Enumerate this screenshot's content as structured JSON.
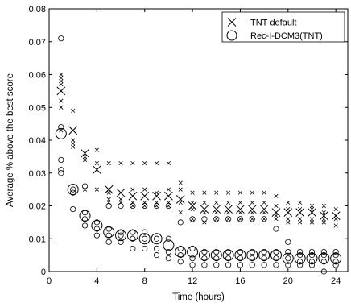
{
  "chart_data": {
    "type": "scatter",
    "title": "",
    "xlabel": "Time (hours)",
    "ylabel": "Average % above the best score",
    "xlim": [
      0,
      25
    ],
    "ylim": [
      0,
      0.08
    ],
    "xticks": [
      0,
      4,
      8,
      12,
      16,
      20,
      24
    ],
    "yticks": [
      0,
      0.01,
      0.02,
      0.03,
      0.04,
      0.05,
      0.06,
      0.07,
      0.08
    ],
    "ytick_labels": [
      "0",
      "0.01",
      "0.02",
      "0.03",
      "0.04",
      "0.05",
      "0.06",
      "0.07",
      "0.08"
    ],
    "grid": false,
    "legend_position": "top-right",
    "series": [
      {
        "name": "TNT-default",
        "marker": "x",
        "mean": [
          [
            1,
            0.055
          ],
          [
            2,
            0.043
          ],
          [
            3,
            0.036
          ],
          [
            4,
            0.031
          ],
          [
            5,
            0.025
          ],
          [
            6,
            0.024
          ],
          [
            7,
            0.023
          ],
          [
            8,
            0.023
          ],
          [
            9,
            0.023
          ],
          [
            10,
            0.023
          ],
          [
            11,
            0.022
          ],
          [
            12,
            0.02
          ],
          [
            13,
            0.019
          ],
          [
            14,
            0.019
          ],
          [
            15,
            0.019
          ],
          [
            16,
            0.019
          ],
          [
            17,
            0.019
          ],
          [
            18,
            0.019
          ],
          [
            19,
            0.018
          ],
          [
            20,
            0.018
          ],
          [
            21,
            0.018
          ],
          [
            22,
            0.018
          ],
          [
            23,
            0.017
          ],
          [
            24,
            0.017
          ]
        ],
        "runs": [
          [
            1,
            0.06
          ],
          [
            1,
            0.059
          ],
          [
            1,
            0.058
          ],
          [
            1,
            0.057
          ],
          [
            1,
            0.052
          ],
          [
            1,
            0.05
          ],
          [
            1,
            0.043
          ],
          [
            2,
            0.049
          ],
          [
            2,
            0.043
          ],
          [
            2,
            0.04
          ],
          [
            2,
            0.039
          ],
          [
            2,
            0.038
          ],
          [
            3,
            0.035
          ],
          [
            3,
            0.034
          ],
          [
            3,
            0.025
          ],
          [
            4,
            0.037
          ],
          [
            4,
            0.033
          ],
          [
            4,
            0.031
          ],
          [
            4,
            0.025
          ],
          [
            5,
            0.033
          ],
          [
            5,
            0.025
          ],
          [
            5,
            0.024
          ],
          [
            5,
            0.022
          ],
          [
            5,
            0.021
          ],
          [
            6,
            0.033
          ],
          [
            6,
            0.024
          ],
          [
            6,
            0.022
          ],
          [
            6,
            0.021
          ],
          [
            7,
            0.033
          ],
          [
            7,
            0.025
          ],
          [
            7,
            0.021
          ],
          [
            7,
            0.02
          ],
          [
            8,
            0.033
          ],
          [
            8,
            0.025
          ],
          [
            8,
            0.021
          ],
          [
            8,
            0.02
          ],
          [
            9,
            0.033
          ],
          [
            9,
            0.024
          ],
          [
            9,
            0.021
          ],
          [
            9,
            0.02
          ],
          [
            10,
            0.033
          ],
          [
            10,
            0.025
          ],
          [
            10,
            0.021
          ],
          [
            10,
            0.02
          ],
          [
            11,
            0.027
          ],
          [
            11,
            0.025
          ],
          [
            11,
            0.021
          ],
          [
            11,
            0.018
          ],
          [
            12,
            0.024
          ],
          [
            12,
            0.021
          ],
          [
            12,
            0.019
          ],
          [
            12,
            0.016
          ],
          [
            13,
            0.024
          ],
          [
            13,
            0.021
          ],
          [
            13,
            0.018
          ],
          [
            13,
            0.015
          ],
          [
            14,
            0.024
          ],
          [
            14,
            0.021
          ],
          [
            14,
            0.018
          ],
          [
            14,
            0.016
          ],
          [
            15,
            0.024
          ],
          [
            15,
            0.021
          ],
          [
            15,
            0.018
          ],
          [
            15,
            0.016
          ],
          [
            16,
            0.024
          ],
          [
            16,
            0.021
          ],
          [
            16,
            0.018
          ],
          [
            16,
            0.016
          ],
          [
            17,
            0.024
          ],
          [
            17,
            0.021
          ],
          [
            17,
            0.018
          ],
          [
            17,
            0.016
          ],
          [
            18,
            0.024
          ],
          [
            18,
            0.021
          ],
          [
            18,
            0.018
          ],
          [
            18,
            0.016
          ],
          [
            19,
            0.023
          ],
          [
            19,
            0.02
          ],
          [
            19,
            0.017
          ],
          [
            19,
            0.016
          ],
          [
            20,
            0.021
          ],
          [
            20,
            0.019
          ],
          [
            20,
            0.016
          ],
          [
            20,
            0.015
          ],
          [
            21,
            0.021
          ],
          [
            21,
            0.019
          ],
          [
            21,
            0.016
          ],
          [
            21,
            0.015
          ],
          [
            22,
            0.02
          ],
          [
            22,
            0.019
          ],
          [
            22,
            0.016
          ],
          [
            22,
            0.015
          ],
          [
            23,
            0.02
          ],
          [
            23,
            0.018
          ],
          [
            23,
            0.016
          ],
          [
            23,
            0.015
          ],
          [
            24,
            0.019
          ],
          [
            24,
            0.017
          ],
          [
            24,
            0.016
          ],
          [
            24,
            0.014
          ]
        ]
      },
      {
        "name": "Rec-I-DCM3(TNT)",
        "marker": "o",
        "mean": [
          [
            1,
            0.042
          ],
          [
            2,
            0.025
          ],
          [
            3,
            0.017
          ],
          [
            4,
            0.014
          ],
          [
            5,
            0.012
          ],
          [
            6,
            0.011
          ],
          [
            7,
            0.011
          ],
          [
            8,
            0.01
          ],
          [
            9,
            0.01
          ],
          [
            10,
            0.008
          ],
          [
            11,
            0.006
          ],
          [
            12,
            0.006
          ],
          [
            13,
            0.005
          ],
          [
            14,
            0.005
          ],
          [
            15,
            0.005
          ],
          [
            16,
            0.005
          ],
          [
            17,
            0.005
          ],
          [
            18,
            0.005
          ],
          [
            19,
            0.005
          ],
          [
            20,
            0.004
          ],
          [
            21,
            0.004
          ],
          [
            22,
            0.004
          ],
          [
            23,
            0.004
          ],
          [
            24,
            0.004
          ]
        ],
        "runs": [
          [
            1,
            0.071
          ],
          [
            1,
            0.044
          ],
          [
            1,
            0.034
          ],
          [
            1,
            0.031
          ],
          [
            1,
            0.03
          ],
          [
            2,
            0.025
          ],
          [
            2,
            0.024
          ],
          [
            2,
            0.019
          ],
          [
            3,
            0.026
          ],
          [
            3,
            0.018
          ],
          [
            3,
            0.016
          ],
          [
            3,
            0.014
          ],
          [
            4,
            0.015
          ],
          [
            4,
            0.013
          ],
          [
            4,
            0.011
          ],
          [
            5,
            0.02
          ],
          [
            5,
            0.013
          ],
          [
            5,
            0.011
          ],
          [
            5,
            0.009
          ],
          [
            6,
            0.02
          ],
          [
            6,
            0.012
          ],
          [
            6,
            0.011
          ],
          [
            6,
            0.009
          ],
          [
            7,
            0.02
          ],
          [
            7,
            0.012
          ],
          [
            7,
            0.01
          ],
          [
            7,
            0.007
          ],
          [
            8,
            0.02
          ],
          [
            8,
            0.012
          ],
          [
            8,
            0.01
          ],
          [
            8,
            0.007
          ],
          [
            9,
            0.02
          ],
          [
            9,
            0.01
          ],
          [
            9,
            0.007
          ],
          [
            9,
            0.005
          ],
          [
            10,
            0.02
          ],
          [
            10,
            0.01
          ],
          [
            10,
            0.006
          ],
          [
            10,
            0.004
          ],
          [
            11,
            0.015
          ],
          [
            11,
            0.007
          ],
          [
            11,
            0.005
          ],
          [
            11,
            0.003
          ],
          [
            12,
            0.016
          ],
          [
            12,
            0.007
          ],
          [
            12,
            0.004
          ],
          [
            12,
            0.002
          ],
          [
            13,
            0.016
          ],
          [
            13,
            0.006
          ],
          [
            13,
            0.004
          ],
          [
            13,
            0.002
          ],
          [
            14,
            0.016
          ],
          [
            14,
            0.006
          ],
          [
            14,
            0.004
          ],
          [
            14,
            0.002
          ],
          [
            15,
            0.016
          ],
          [
            15,
            0.006
          ],
          [
            15,
            0.004
          ],
          [
            15,
            0.002
          ],
          [
            16,
            0.016
          ],
          [
            16,
            0.006
          ],
          [
            16,
            0.004
          ],
          [
            16,
            0.002
          ],
          [
            17,
            0.016
          ],
          [
            17,
            0.006
          ],
          [
            17,
            0.004
          ],
          [
            17,
            0.002
          ],
          [
            18,
            0.016
          ],
          [
            18,
            0.006
          ],
          [
            18,
            0.004
          ],
          [
            18,
            0.002
          ],
          [
            19,
            0.013
          ],
          [
            19,
            0.006
          ],
          [
            19,
            0.004
          ],
          [
            19,
            0.002
          ],
          [
            20,
            0.009
          ],
          [
            20,
            0.006
          ],
          [
            20,
            0.004
          ],
          [
            20,
            0.002
          ],
          [
            21,
            0.006
          ],
          [
            21,
            0.005
          ],
          [
            21,
            0.003
          ],
          [
            21,
            0.002
          ],
          [
            22,
            0.006
          ],
          [
            22,
            0.005
          ],
          [
            22,
            0.003
          ],
          [
            22,
            0.002
          ],
          [
            23,
            0.006
          ],
          [
            23,
            0.005
          ],
          [
            23,
            0.003
          ],
          [
            23,
            0.0
          ],
          [
            24,
            0.006
          ],
          [
            24,
            0.005
          ],
          [
            24,
            0.003
          ],
          [
            24,
            0.002
          ]
        ]
      }
    ]
  }
}
